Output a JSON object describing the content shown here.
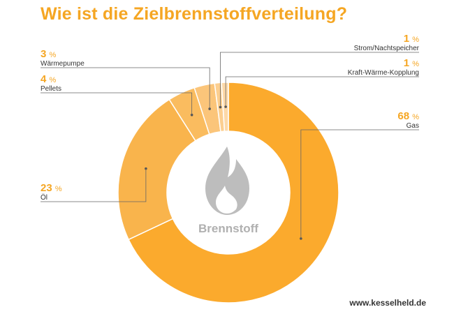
{
  "title": "Wie ist die Zielbrennstoffverteilung?",
  "center_label": "Brennstoff",
  "source": "www.kesselheld.de",
  "percent_symbol": "%",
  "colors": {
    "title": "#f5a623",
    "center_icon": "#bdbdbd",
    "center_label": "#b0b0b0"
  },
  "icon": "flame-icon",
  "chart_data": {
    "type": "pie",
    "style": "donut",
    "title": "Wie ist die Zielbrennstoffverteilung?",
    "center_label": "Brennstoff",
    "slices": [
      {
        "label": "Gas",
        "value": 68,
        "color": "#fbaa2d"
      },
      {
        "label": "Öl",
        "value": 23,
        "color": "#f9b44c"
      },
      {
        "label": "Pellets",
        "value": 4,
        "color": "#fabc5f"
      },
      {
        "label": "Wärmepumpe",
        "value": 3,
        "color": "#fbc57a"
      },
      {
        "label": "Strom/Nachtspeicher",
        "value": 1,
        "color": "#fccf90"
      },
      {
        "label": "Kraft-Wärme-Kopplung",
        "value": 1,
        "color": "#fdd9a8"
      }
    ],
    "legend": "none"
  }
}
